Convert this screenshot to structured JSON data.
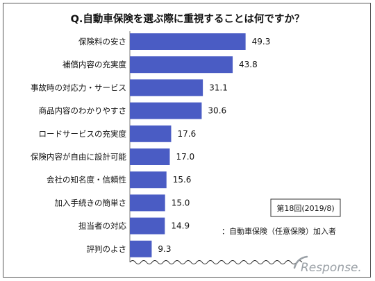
{
  "chart_data": {
    "type": "bar",
    "orientation": "horizontal",
    "title": "Q.自動車保険を選ぶ際に重視することは何ですか？",
    "categories": [
      "保険料の安さ",
      "補償内容の充実度",
      "事故時の対応力・サービス",
      "商品内容のわかりやすさ",
      "ロードサービスの充実度",
      "保険内容が自由に設計可能",
      "会社の知名度・信頼性",
      "加入手続きの簡単さ",
      "担当者の対応",
      "評判のよさ"
    ],
    "values": [
      49.3,
      43.8,
      31.1,
      30.6,
      17.6,
      17.0,
      15.6,
      15.0,
      14.9,
      9.3
    ],
    "value_labels": [
      "49.3",
      "43.8",
      "31.1",
      "30.6",
      "17.6",
      "17.0",
      "15.6",
      "15.0",
      "14.9",
      "9.3"
    ],
    "xlim": [
      0,
      60
    ],
    "grid": false,
    "legend": "none",
    "bar_color": "#4a5cc4",
    "edition_label": "第18回(2019/8)",
    "note": "：自動車保険（任意保険）加入者"
  },
  "watermark": {
    "text": "Response."
  }
}
